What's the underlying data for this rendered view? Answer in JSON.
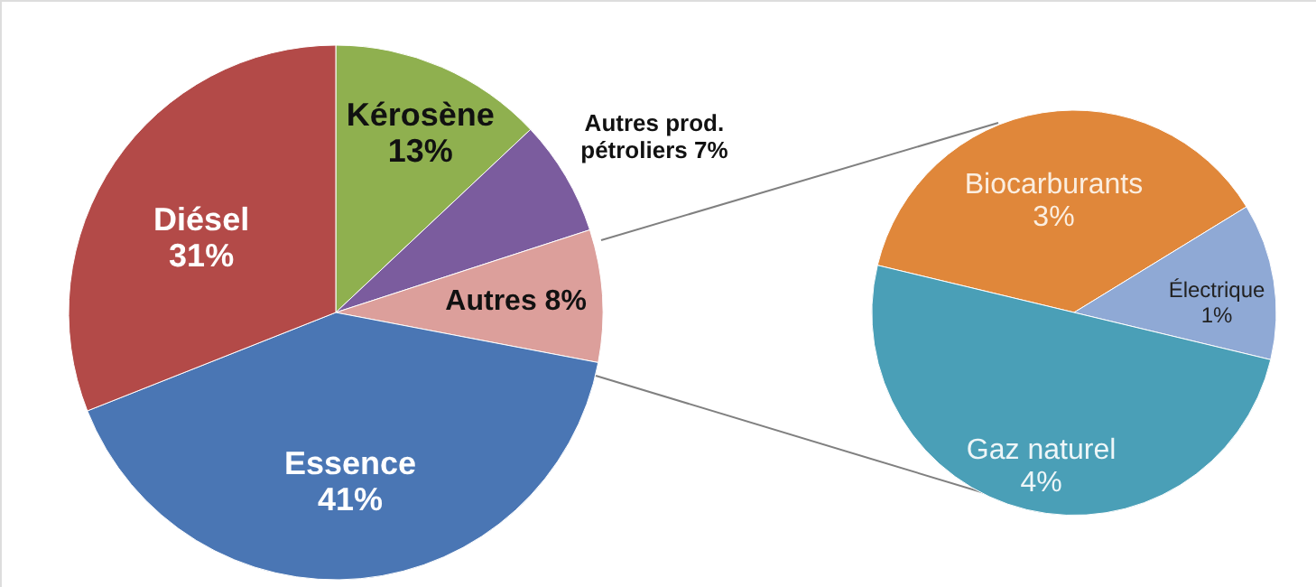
{
  "chart_data": [
    {
      "type": "pie",
      "categories": [
        "Kérosène",
        "Autres prod. pétroliers",
        "Autres",
        "Essence",
        "Diésel"
      ],
      "values": [
        13,
        7,
        8,
        41,
        31
      ],
      "colors": [
        "#8fb04f",
        "#7b5c9e",
        "#dc9f9b",
        "#4a76b4",
        "#b34a48"
      ],
      "value_labels": [
        "13%",
        "7%",
        "8%",
        "41%",
        "31%"
      ]
    },
    {
      "type": "pie",
      "categories": [
        "Biocarburants",
        "Électrique",
        "Gaz naturel"
      ],
      "values": [
        3,
        1,
        4
      ],
      "colors": [
        "#e0873a",
        "#8fa9d5",
        "#4a9fb7"
      ],
      "value_labels": [
        "3%",
        "1%",
        "4%"
      ]
    }
  ]
}
